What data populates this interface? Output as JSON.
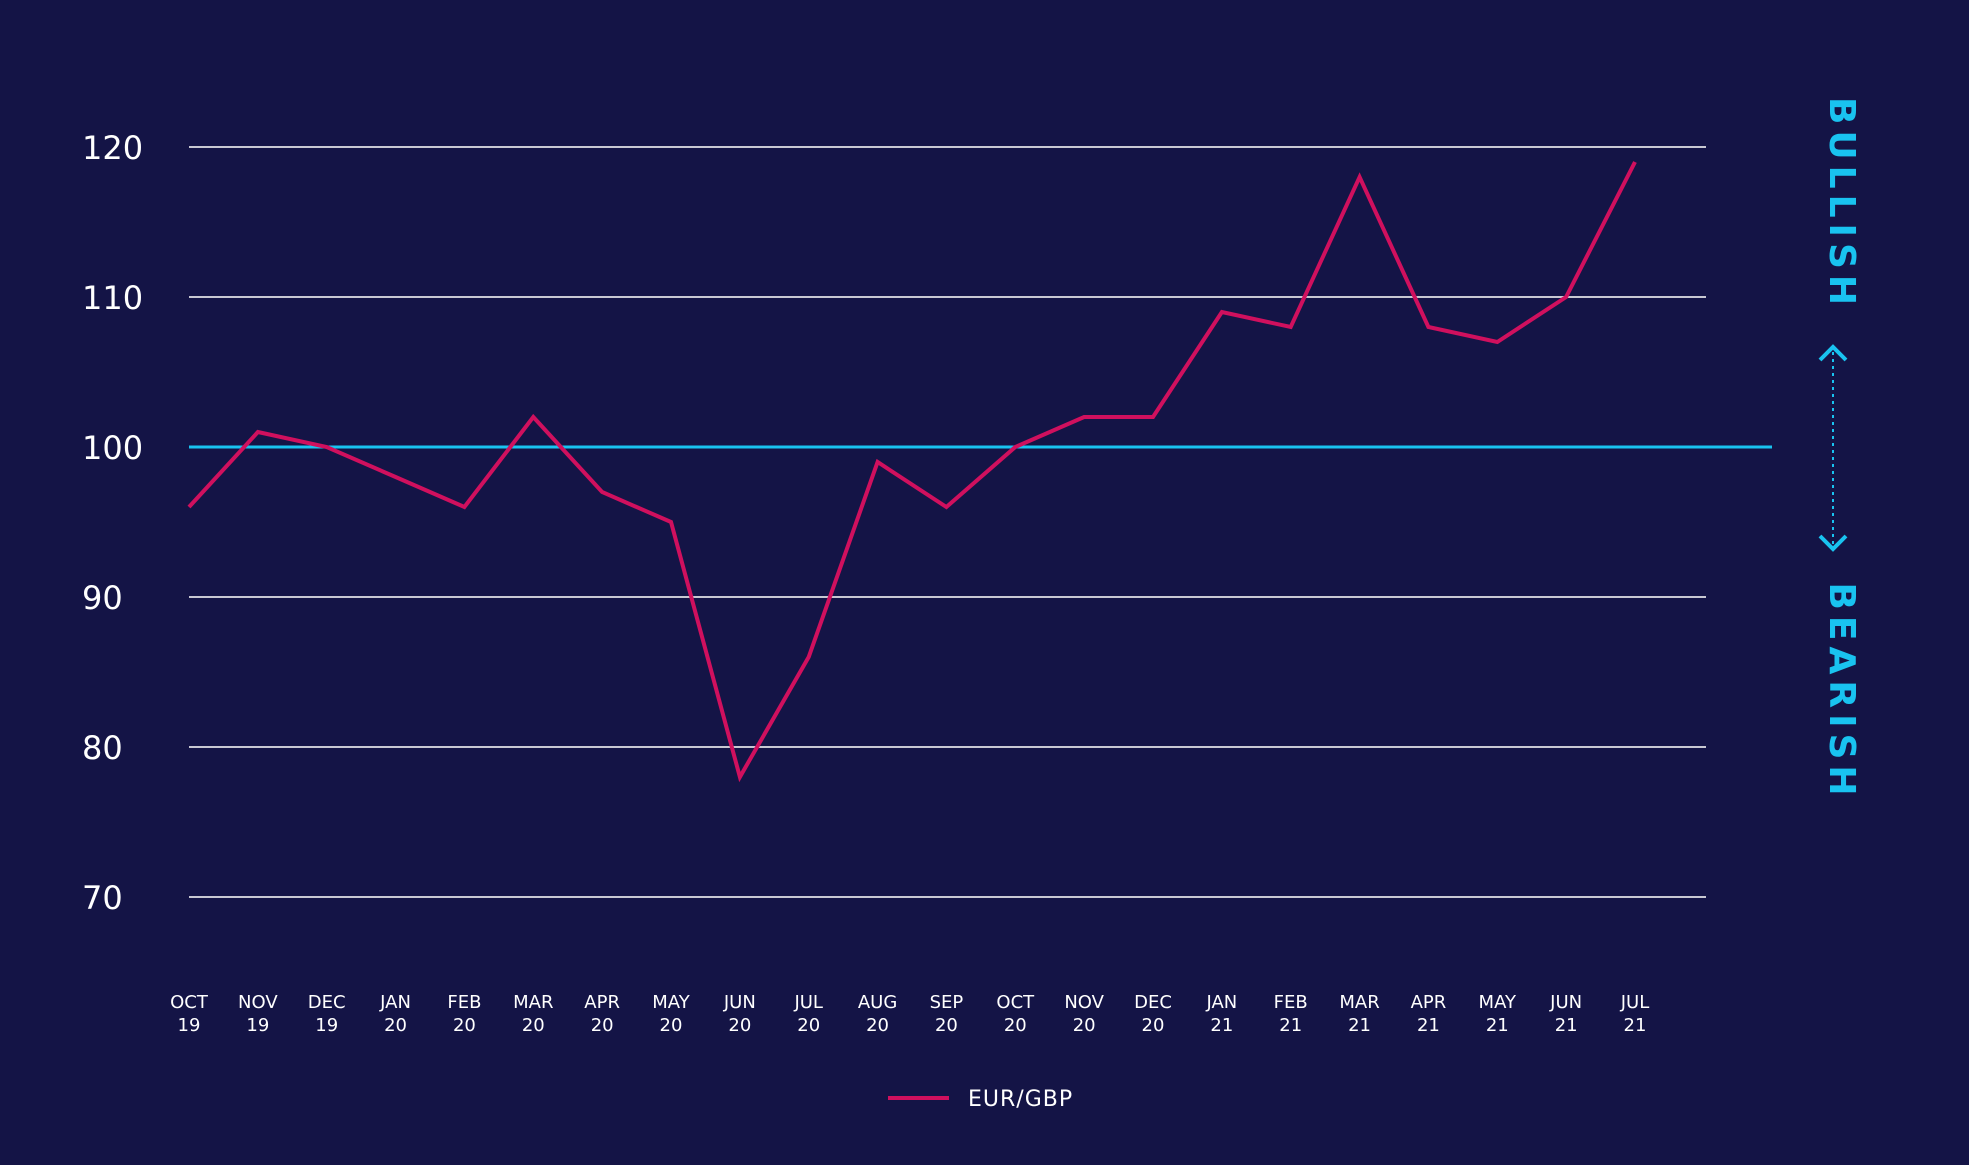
{
  "chart_data": {
    "type": "line",
    "categories": [
      "OCT 19",
      "NOV 19",
      "DEC 19",
      "JAN 20",
      "FEB 20",
      "MAR 20",
      "APR 20",
      "MAY 20",
      "JUN 20",
      "JUL 20",
      "AUG 20",
      "SEP 20",
      "OCT 20",
      "NOV 20",
      "DEC 20",
      "JAN 21",
      "FEB 21",
      "MAR 21",
      "APR 21",
      "MAY 21",
      "JUN 21",
      "JUL 21"
    ],
    "x_tick_labels": [
      [
        "OCT",
        "19"
      ],
      [
        "NOV",
        "19"
      ],
      [
        "DEC",
        "19"
      ],
      [
        "JAN",
        "20"
      ],
      [
        "FEB",
        "20"
      ],
      [
        "MAR",
        "20"
      ],
      [
        "APR",
        "20"
      ],
      [
        "MAY",
        "20"
      ],
      [
        "JUN",
        "20"
      ],
      [
        "JUL",
        "20"
      ],
      [
        "AUG",
        "20"
      ],
      [
        "SEP",
        "20"
      ],
      [
        "OCT",
        "20"
      ],
      [
        "NOV",
        "20"
      ],
      [
        "DEC",
        "20"
      ],
      [
        "JAN",
        "21"
      ],
      [
        "FEB",
        "21"
      ],
      [
        "MAR",
        "21"
      ],
      [
        "APR",
        "21"
      ],
      [
        "MAY",
        "21"
      ],
      [
        "JUN",
        "21"
      ],
      [
        "JUL",
        "21"
      ]
    ],
    "series": [
      {
        "name": "EUR/GBP",
        "color": "#d0105e",
        "values": [
          96,
          101,
          100,
          98,
          96,
          102,
          97,
          95,
          78,
          86,
          99,
          96,
          100,
          102,
          102,
          109,
          108,
          118,
          108,
          107,
          110,
          119
        ]
      }
    ],
    "y_ticks": [
      "120",
      "110",
      "100",
      "90",
      "80",
      "70"
    ],
    "ylim": [
      70,
      120
    ],
    "reference_line": {
      "value": 100,
      "color": "#19c3f0"
    },
    "grid": true,
    "grid_color": "#c8c8d2",
    "side_labels": {
      "top": "BULLISH",
      "bottom": "BEARISH",
      "color": "#19c3f0"
    },
    "legend_position": "bottom-center",
    "title": "",
    "xlabel": "",
    "ylabel": ""
  }
}
